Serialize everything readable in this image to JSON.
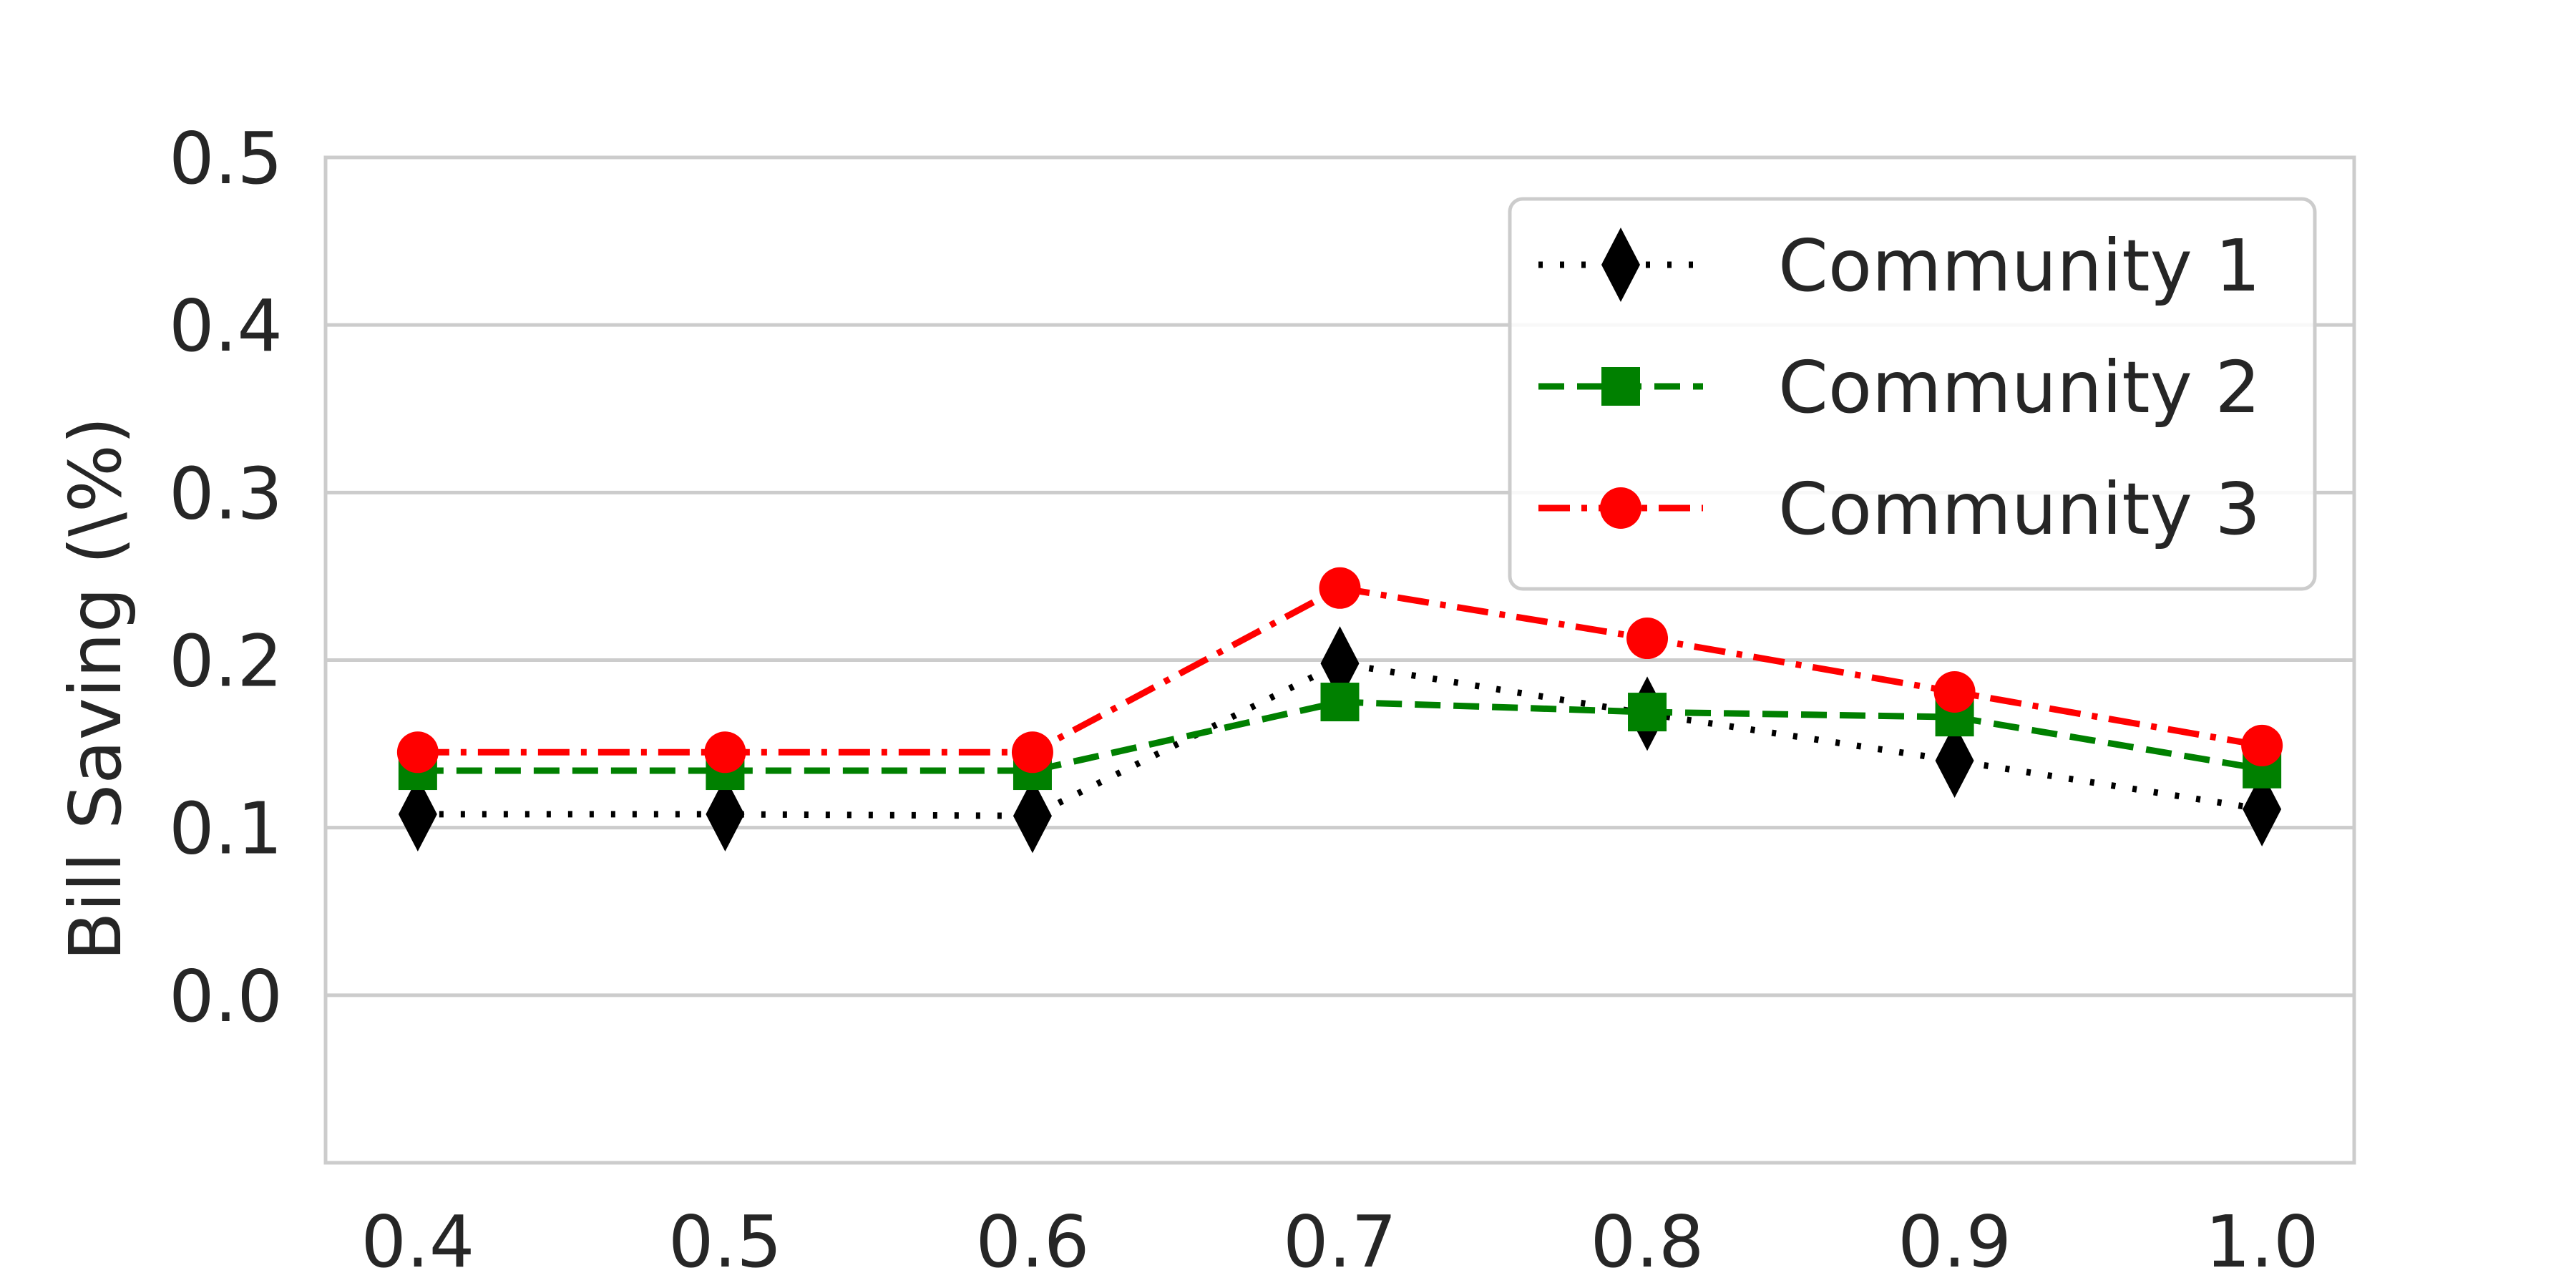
{
  "chart_data": {
    "type": "line",
    "title": "",
    "xlabel": "",
    "ylabel": "Bill Saving (\\%)",
    "x": [
      0.4,
      0.5,
      0.6,
      0.7,
      0.8,
      0.9,
      1.0
    ],
    "x_tick_labels": [
      "0.4",
      "0.5",
      "0.6",
      "0.7",
      "0.8",
      "0.9",
      "1.0"
    ],
    "y_ticks": [
      0.0,
      0.1,
      0.2,
      0.3,
      0.4,
      0.5
    ],
    "y_tick_labels": [
      "0.0",
      "0.1",
      "0.2",
      "0.3",
      "0.4",
      "0.5"
    ],
    "xlim": [
      0.37,
      1.03
    ],
    "ylim": [
      -0.1,
      0.5
    ],
    "grid": "horizontal",
    "legend_position": "top-right",
    "series": [
      {
        "name": "Community 1",
        "values": [
          0.108,
          0.108,
          0.107,
          0.198,
          0.168,
          0.14,
          0.111
        ],
        "color": "#000000",
        "line_style": "dotted",
        "marker": "diamond"
      },
      {
        "name": "Community 2",
        "values": [
          0.134,
          0.134,
          0.134,
          0.175,
          0.169,
          0.166,
          0.135
        ],
        "color": "#008000",
        "line_style": "dashed",
        "marker": "square"
      },
      {
        "name": "Community 3",
        "values": [
          0.145,
          0.145,
          0.145,
          0.243,
          0.213,
          0.181,
          0.149
        ],
        "color": "#ff0000",
        "line_style": "dash-dot",
        "marker": "circle"
      }
    ]
  }
}
